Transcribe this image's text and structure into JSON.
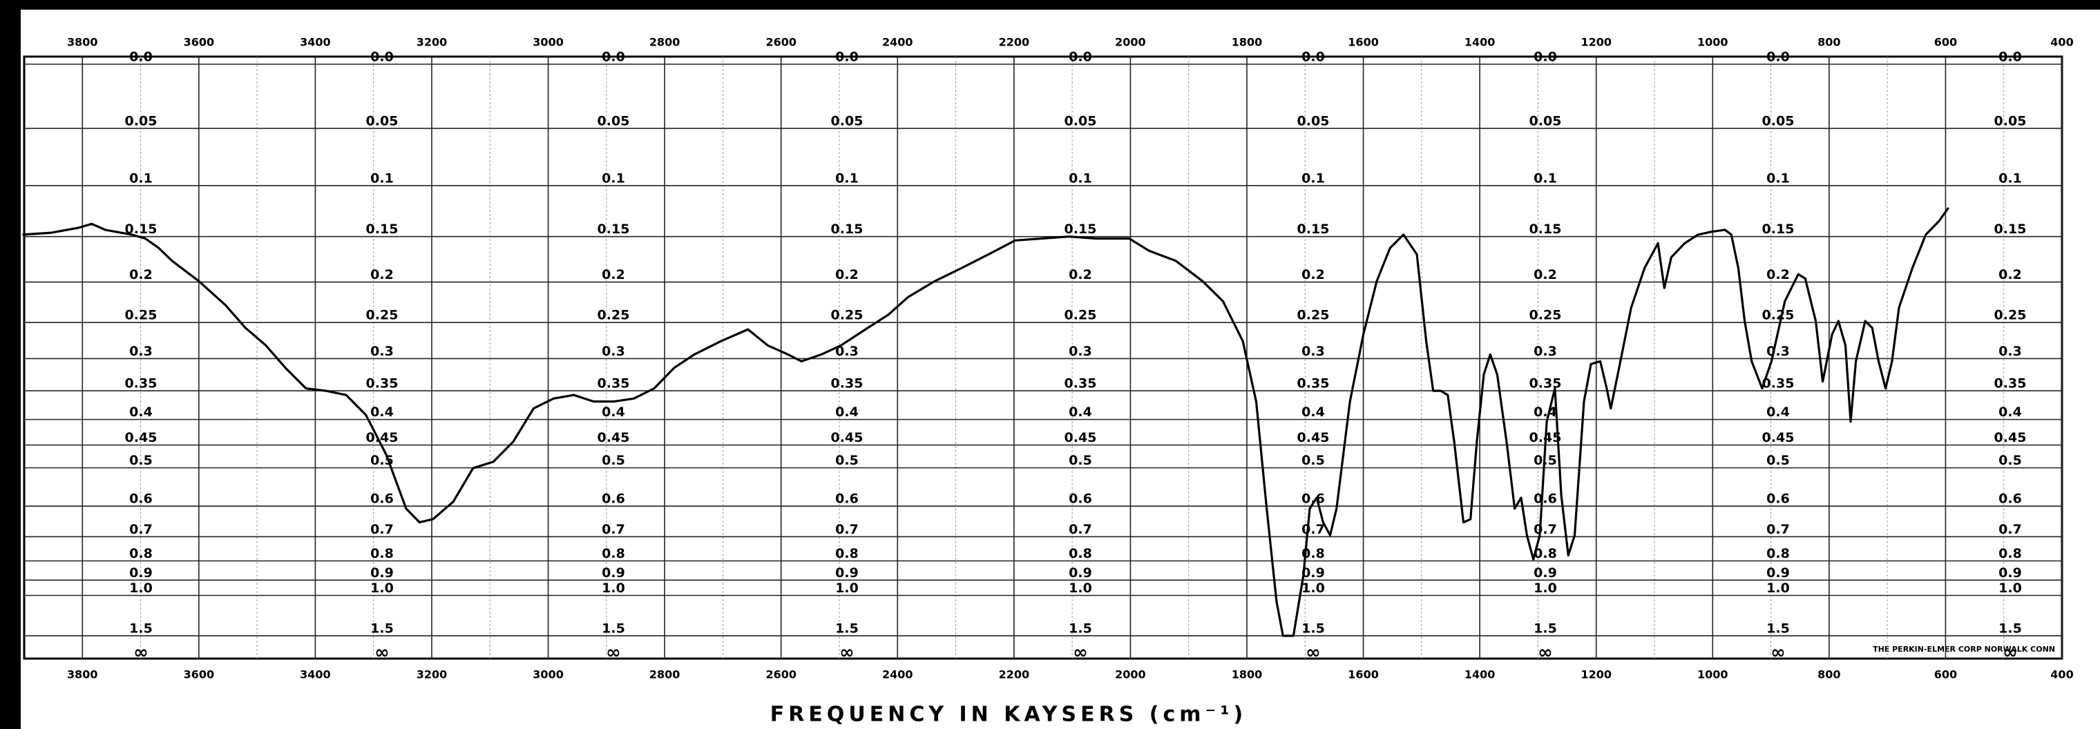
{
  "chart_data": {
    "type": "line",
    "xlabel": "FREQUENCY IN KAYSERS (cm⁻¹)",
    "annotation": "THE PERKIN-ELMER CORP NORWALK CONN",
    "xlim": [
      3900,
      400
    ],
    "xticks": [
      3800,
      3600,
      3400,
      3200,
      3000,
      2800,
      2600,
      2400,
      2200,
      2000,
      1800,
      1600,
      1400,
      1200,
      1000,
      800,
      600,
      400
    ],
    "yscale": "transmittance",
    "yticks": [
      {
        "value": 0,
        "label": "0.0"
      },
      0.05,
      0.1,
      0.15,
      0.2,
      0.25,
      0.3,
      0.35,
      0.4,
      0.45,
      0.5,
      0.6,
      0.7,
      0.8,
      0.9,
      {
        "value": 1,
        "label": "1.0"
      },
      1.5
    ],
    "y_infinity_label": "∞",
    "grid": true,
    "color": "#000000",
    "x": [
      3903,
      3853,
      3807,
      3784,
      3761,
      3715,
      3692,
      3669,
      3646,
      3600,
      3554,
      3520,
      3485,
      3451,
      3416,
      3382,
      3347,
      3313,
      3278,
      3244,
      3221,
      3198,
      3163,
      3129,
      3094,
      3060,
      3025,
      2991,
      2956,
      2922,
      2887,
      2853,
      2818,
      2784,
      2749,
      2703,
      2657,
      2623,
      2588,
      2565,
      2531,
      2497,
      2451,
      2416,
      2382,
      2336,
      2290,
      2244,
      2198,
      2152,
      2106,
      2060,
      2002,
      1968,
      1922,
      1876,
      1841,
      1807,
      1784,
      1766,
      1749,
      1738,
      1720,
      1703,
      1692,
      1680,
      1669,
      1657,
      1646,
      1623,
      1600,
      1577,
      1554,
      1531,
      1508,
      1492,
      1480,
      1467,
      1455,
      1444,
      1428,
      1416,
      1405,
      1393,
      1382,
      1370,
      1354,
      1340,
      1329,
      1319,
      1308,
      1297,
      1285,
      1271,
      1260,
      1248,
      1237,
      1221,
      1209,
      1193,
      1182,
      1175,
      1163,
      1140,
      1117,
      1094,
      1083,
      1071,
      1048,
      1025,
      1002,
      979,
      968,
      956,
      945,
      933,
      915,
      899,
      876,
      853,
      841,
      823,
      811,
      795,
      784,
      772,
      763,
      754,
      738,
      726,
      715,
      703,
      692,
      680,
      657,
      634,
      611,
      595
    ],
    "values": [
      0.148,
      0.146,
      0.141,
      0.137,
      0.143,
      0.148,
      0.152,
      0.162,
      0.176,
      0.199,
      0.228,
      0.257,
      0.281,
      0.314,
      0.346,
      0.35,
      0.357,
      0.392,
      0.471,
      0.607,
      0.65,
      0.64,
      0.587,
      0.501,
      0.486,
      0.443,
      0.38,
      0.363,
      0.357,
      0.368,
      0.368,
      0.363,
      0.346,
      0.314,
      0.294,
      0.275,
      0.259,
      0.281,
      0.294,
      0.304,
      0.294,
      0.281,
      0.257,
      0.24,
      0.218,
      0.199,
      0.184,
      0.169,
      0.154,
      0.152,
      0.15,
      0.152,
      0.152,
      0.165,
      0.176,
      0.199,
      0.223,
      0.275,
      0.368,
      0.607,
      1.05,
      1.5,
      1.5,
      0.873,
      0.607,
      0.576,
      0.65,
      0.695,
      0.607,
      0.368,
      0.266,
      0.199,
      0.162,
      0.148,
      0.169,
      0.275,
      0.35,
      0.35,
      0.357,
      0.443,
      0.65,
      0.64,
      0.443,
      0.324,
      0.294,
      0.324,
      0.443,
      0.607,
      0.576,
      0.695,
      0.793,
      0.695,
      0.404,
      0.346,
      0.569,
      0.775,
      0.695,
      0.368,
      0.308,
      0.304,
      0.346,
      0.38,
      0.324,
      0.231,
      0.184,
      0.157,
      0.207,
      0.172,
      0.157,
      0.148,
      0.145,
      0.143,
      0.148,
      0.184,
      0.248,
      0.304,
      0.346,
      0.304,
      0.223,
      0.191,
      0.196,
      0.248,
      0.335,
      0.266,
      0.248,
      0.281,
      0.404,
      0.304,
      0.248,
      0.257,
      0.304,
      0.346,
      0.304,
      0.231,
      0.184,
      0.148,
      0.134,
      0.121
    ]
  }
}
